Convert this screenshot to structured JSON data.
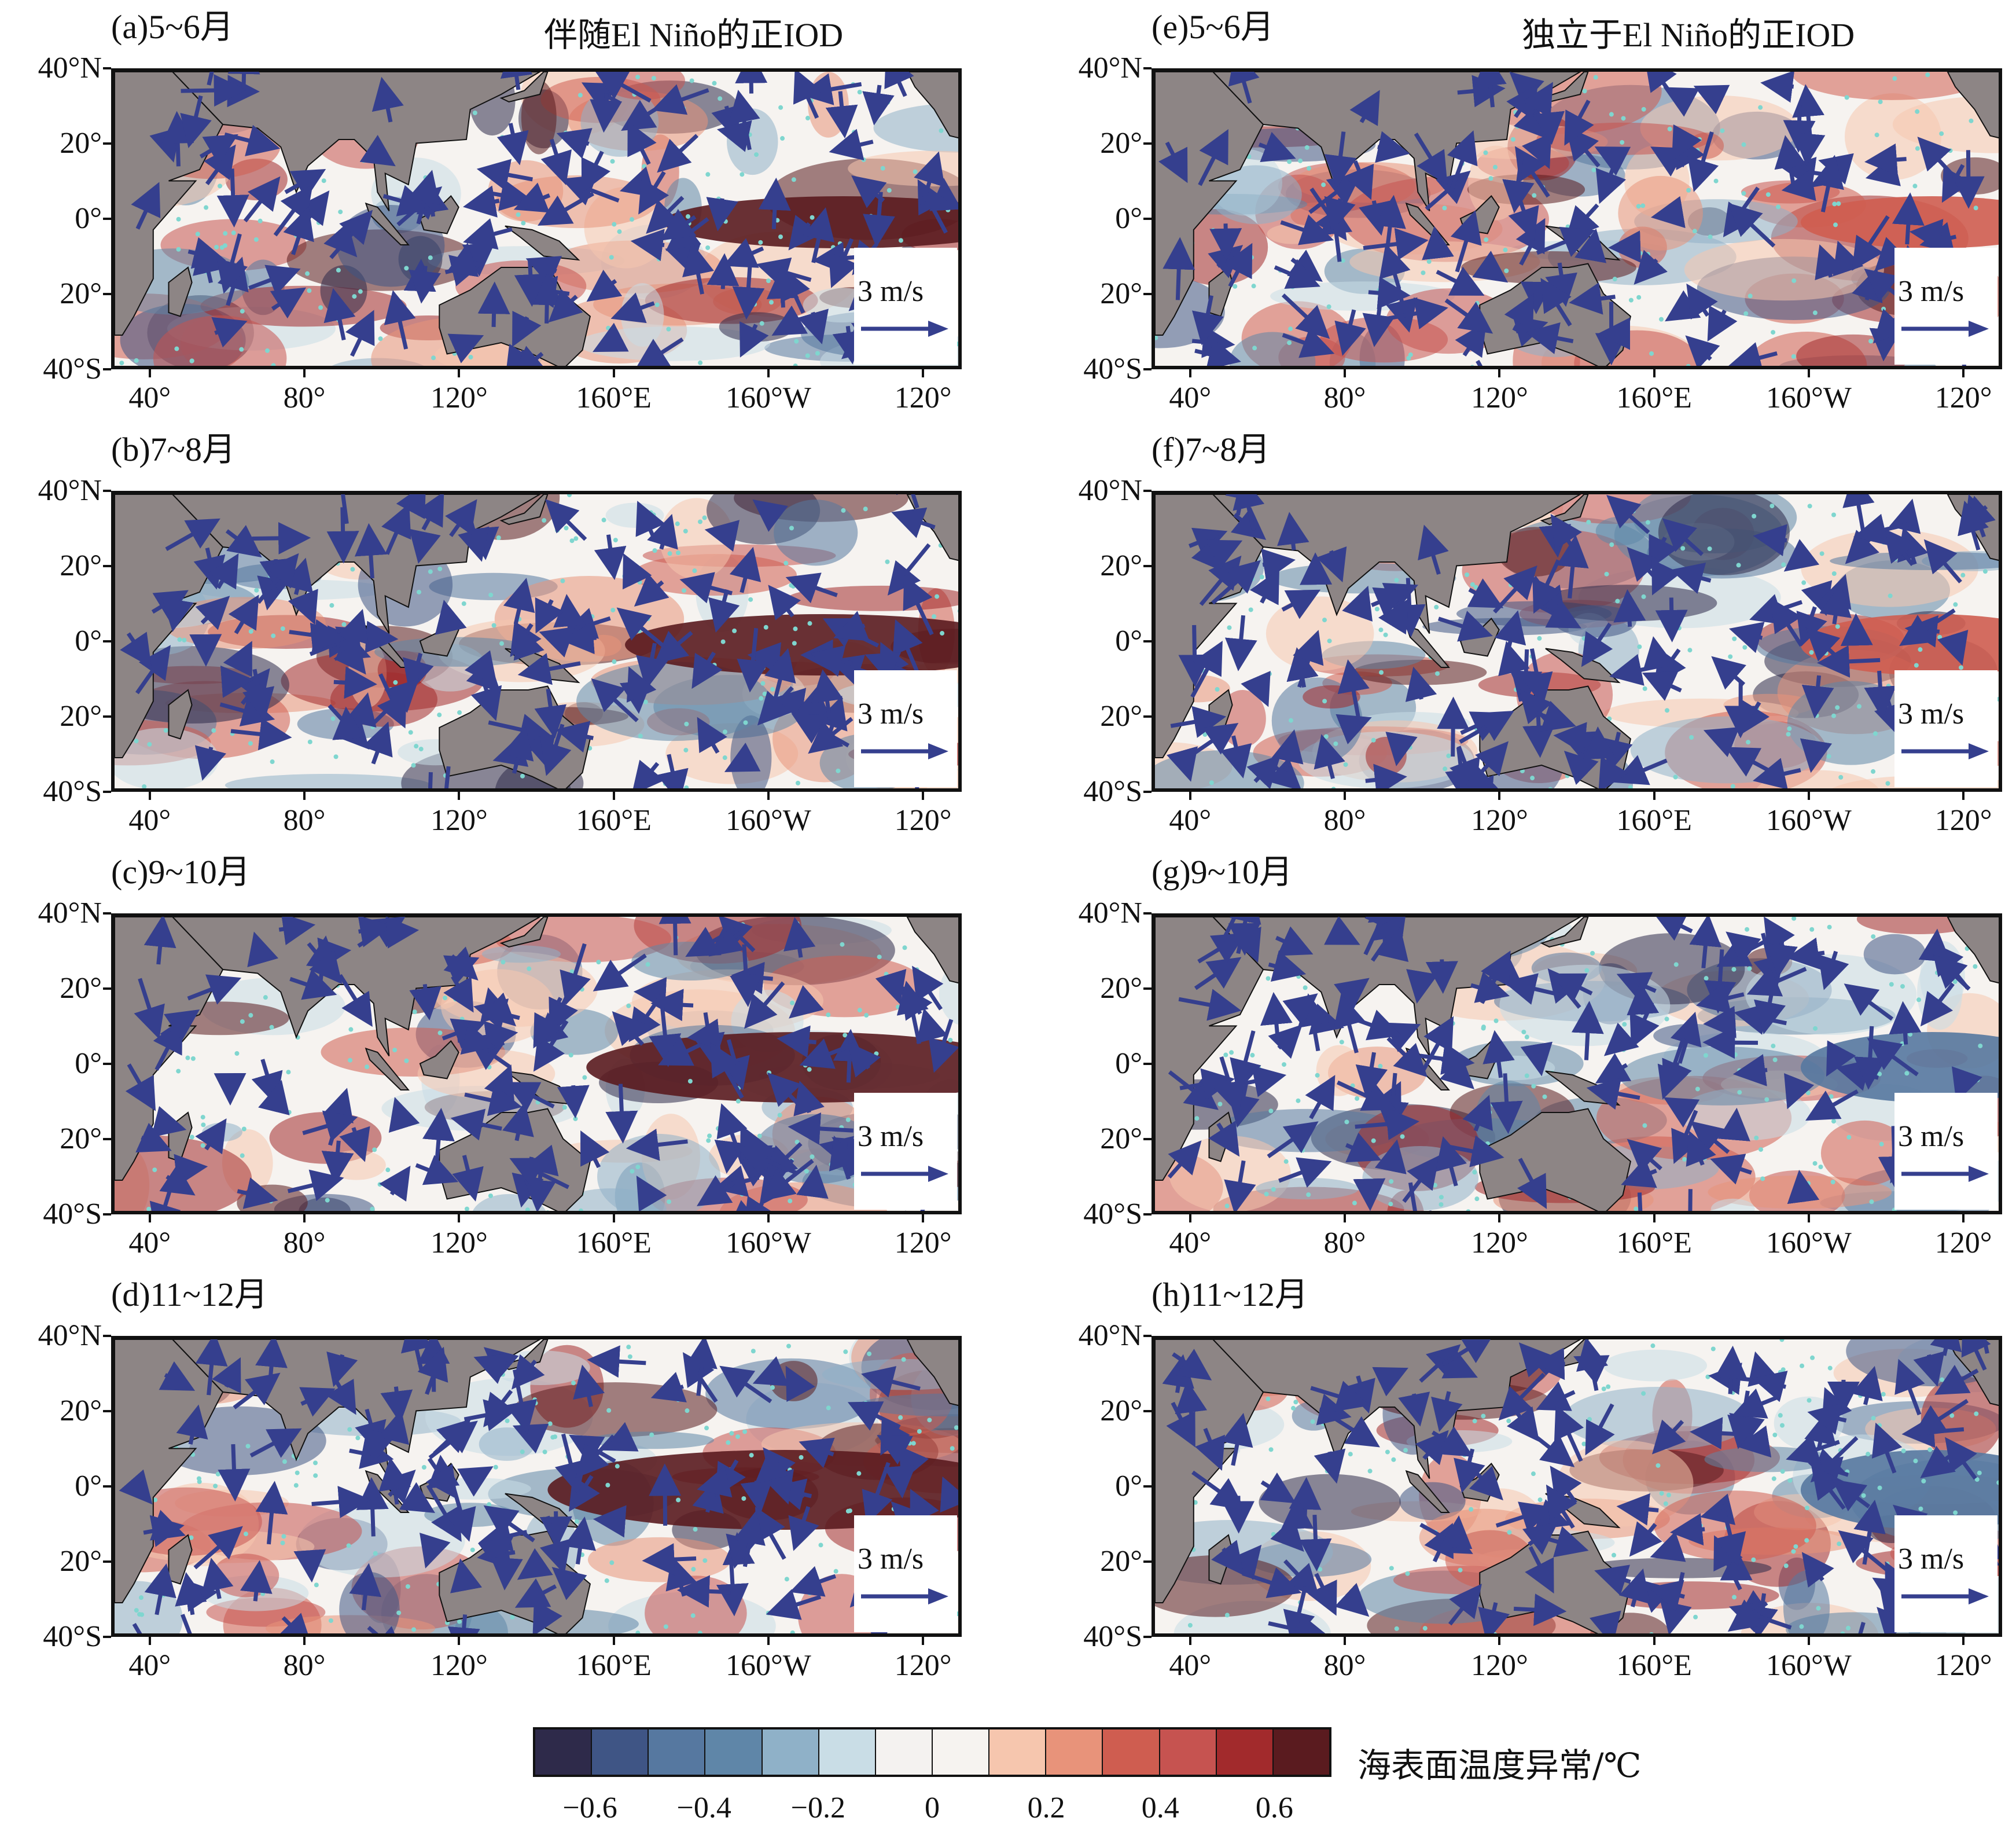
{
  "columns": [
    {
      "header": "伴随El Niño的正IOD",
      "panels": [
        {
          "title": "(a)5~6月",
          "scale_label": "3 m/s"
        },
        {
          "title": "(b)7~8月",
          "scale_label": "3 m/s"
        },
        {
          "title": "(c)9~10月",
          "scale_label": "3 m/s"
        },
        {
          "title": "(d)11~12月",
          "scale_label": "3 m/s"
        }
      ]
    },
    {
      "header": "独立于El Niño的正IOD",
      "panels": [
        {
          "title": "(e)5~6月",
          "scale_label": "3 m/s"
        },
        {
          "title": "(f)7~8月",
          "scale_label": "3 m/s"
        },
        {
          "title": "(g)9~10月",
          "scale_label": "3 m/s"
        },
        {
          "title": "(h)11~12月",
          "scale_label": "3 m/s"
        }
      ]
    }
  ],
  "lat_labels": [
    "40°N",
    "20°",
    "0°",
    "20°",
    "40°S"
  ],
  "lon_labels": [
    "40°",
    "80°",
    "120°",
    "160°E",
    "160°W",
    "120°"
  ],
  "colorbar": {
    "label": "海表面温度异常/℃",
    "ticks": [
      "−0.6",
      "−0.4",
      "−0.2",
      "0",
      "0.2",
      "0.4",
      "0.6"
    ],
    "colors": [
      "#2e2a4a",
      "#3f5585",
      "#5678a0",
      "#5f86a8",
      "#8fb1c8",
      "#c9dde6",
      "#f4f2f0",
      "#f6f3f0",
      "#f6c6ae",
      "#e8937a",
      "#cf5d50",
      "#c65350",
      "#a22a2c",
      "#5a1b1f"
    ]
  },
  "land_color": "#8d8585",
  "vector_color": "#353f8e",
  "stipple_color": "#7fd6cf"
}
